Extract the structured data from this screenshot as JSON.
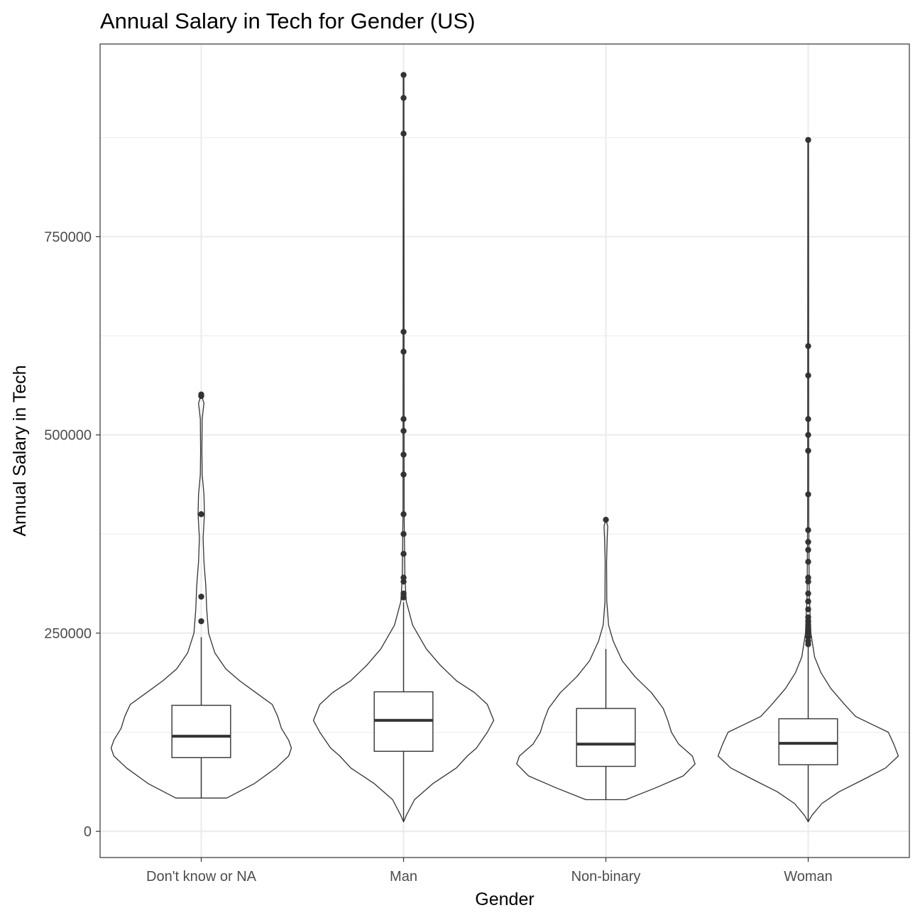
{
  "chart_data": {
    "type": "violin",
    "title": "Annual Salary in Tech for Gender (US)",
    "xlabel": "Gender",
    "ylabel": "Annual Salary in Tech",
    "ylim": [
      -33000,
      993000
    ],
    "yticks": [
      0,
      250000,
      500000,
      750000
    ],
    "ytick_labels": [
      "0",
      "250000",
      "500000",
      "750000"
    ],
    "grid": true,
    "categories": [
      "Don't know or NA",
      "Man",
      "Non-binary",
      "Woman"
    ],
    "groups": [
      {
        "category": "Don't know or NA",
        "box": {
          "whisker_low": 42000,
          "q1": 93000,
          "median": 120000,
          "q3": 159000,
          "whisker_high": 245000
        },
        "outliers": [
          265000,
          296000,
          400000,
          549000,
          551000
        ],
        "violin": [
          [
            42000,
            0.28
          ],
          [
            60000,
            0.58
          ],
          [
            80000,
            0.82
          ],
          [
            95000,
            0.96
          ],
          [
            105000,
            0.99
          ],
          [
            115000,
            0.96
          ],
          [
            130000,
            0.88
          ],
          [
            145000,
            0.84
          ],
          [
            160000,
            0.78
          ],
          [
            175000,
            0.6
          ],
          [
            190000,
            0.42
          ],
          [
            205000,
            0.27
          ],
          [
            225000,
            0.15
          ],
          [
            250000,
            0.08
          ],
          [
            280000,
            0.06
          ],
          [
            310000,
            0.05
          ],
          [
            340000,
            0.03
          ],
          [
            370000,
            0.02
          ],
          [
            400000,
            0.035
          ],
          [
            425000,
            0.03
          ],
          [
            450000,
            0.01
          ],
          [
            480000,
            0.007
          ],
          [
            520000,
            0.01
          ],
          [
            540000,
            0.03
          ],
          [
            551000,
            0.0
          ]
        ]
      },
      {
        "category": "Man",
        "box": {
          "whisker_low": 12000,
          "q1": 101000,
          "median": 140000,
          "q3": 176000,
          "whisker_high": 289000
        },
        "outliers": [
          295000,
          300000,
          315000,
          320000,
          350000,
          375000,
          400000,
          450000,
          475000,
          505000,
          520000,
          605000,
          630000,
          880000,
          925000,
          954000
        ],
        "violin": [
          [
            12000,
            0.0
          ],
          [
            20000,
            0.03
          ],
          [
            40000,
            0.12
          ],
          [
            60000,
            0.32
          ],
          [
            80000,
            0.58
          ],
          [
            95000,
            0.7
          ],
          [
            105000,
            0.8
          ],
          [
            115000,
            0.86
          ],
          [
            125000,
            0.92
          ],
          [
            140000,
            0.99
          ],
          [
            160000,
            0.92
          ],
          [
            175000,
            0.78
          ],
          [
            190000,
            0.58
          ],
          [
            210000,
            0.4
          ],
          [
            230000,
            0.25
          ],
          [
            260000,
            0.1
          ],
          [
            290000,
            0.03
          ],
          [
            320000,
            0.015
          ],
          [
            400000,
            0.006
          ],
          [
            954000,
            0.004
          ]
        ]
      },
      {
        "category": "Non-binary",
        "box": {
          "whisker_low": 40000,
          "q1": 82000,
          "median": 110000,
          "q3": 155000,
          "whisker_high": 230000
        },
        "outliers": [
          393000
        ],
        "violin": [
          [
            40000,
            0.22
          ],
          [
            55000,
            0.55
          ],
          [
            70000,
            0.85
          ],
          [
            85000,
            0.98
          ],
          [
            95000,
            0.95
          ],
          [
            110000,
            0.8
          ],
          [
            125000,
            0.72
          ],
          [
            140000,
            0.68
          ],
          [
            155000,
            0.63
          ],
          [
            175000,
            0.5
          ],
          [
            195000,
            0.32
          ],
          [
            215000,
            0.18
          ],
          [
            240000,
            0.08
          ],
          [
            260000,
            0.03
          ],
          [
            290000,
            0.01
          ],
          [
            340000,
            0.008
          ],
          [
            370000,
            0.015
          ],
          [
            385000,
            0.02
          ],
          [
            393000,
            0.0
          ]
        ]
      },
      {
        "category": "Woman",
        "box": {
          "whisker_low": 12000,
          "q1": 84000,
          "median": 111000,
          "q3": 142000,
          "whisker_high": 233000
        },
        "outliers": [
          236000,
          240000,
          245000,
          250000,
          255000,
          260000,
          265000,
          270000,
          280000,
          290000,
          300000,
          315000,
          320000,
          340000,
          355000,
          365000,
          380000,
          425000,
          480000,
          500000,
          520000,
          575000,
          612000,
          872000
        ],
        "violin": [
          [
            12000,
            0.0
          ],
          [
            20000,
            0.04
          ],
          [
            35000,
            0.15
          ],
          [
            50000,
            0.34
          ],
          [
            65000,
            0.6
          ],
          [
            80000,
            0.85
          ],
          [
            95000,
            0.99
          ],
          [
            110000,
            0.94
          ],
          [
            125000,
            0.88
          ],
          [
            135000,
            0.7
          ],
          [
            145000,
            0.52
          ],
          [
            160000,
            0.4
          ],
          [
            180000,
            0.25
          ],
          [
            200000,
            0.14
          ],
          [
            220000,
            0.07
          ],
          [
            250000,
            0.03
          ],
          [
            300000,
            0.012
          ],
          [
            400000,
            0.006
          ],
          [
            872000,
            0.004
          ]
        ]
      }
    ],
    "colors": {
      "outline": "#333333",
      "grid": "#ebebeb",
      "point": "#333333",
      "panel_border": "#333333"
    }
  }
}
